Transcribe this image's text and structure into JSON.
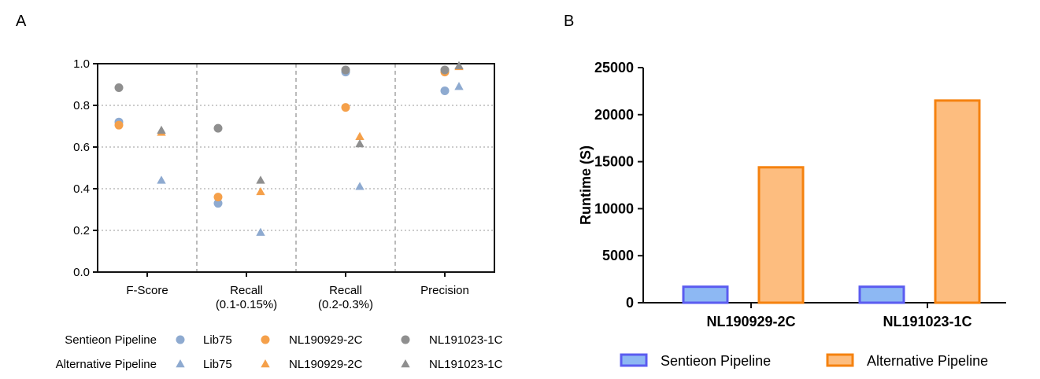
{
  "panel_a_label": "A",
  "panel_b_label": "B",
  "legend_a": {
    "rows": [
      {
        "label": "Sentieon Pipeline",
        "marker": "circle",
        "items": [
          "Lib75",
          "NL190929-2C",
          "NL191023-1C"
        ]
      },
      {
        "label": "Alternative Pipeline",
        "marker": "triangle",
        "items": [
          "Lib75",
          "NL190929-2C",
          "NL191023-1C"
        ]
      }
    ]
  },
  "legend_b": {
    "items": [
      "Sentieon Pipeline",
      "Alternative Pipeline"
    ]
  },
  "colors": {
    "lib75": "#8eaad0",
    "nl190929": "#f5a04a",
    "nl191023": "#8f8f8f",
    "sentieon_fill": "#8db8f3",
    "sentieon_edge": "#5b5cf0",
    "alternative_fill": "#fdbd7f",
    "alternative_edge": "#f5820f"
  },
  "chart_data": [
    {
      "id": "A",
      "type": "scatter",
      "title": "",
      "xlabel": "",
      "ylabel": "",
      "ylim": [
        0,
        1.0
      ],
      "yticks": [
        0.0,
        0.2,
        0.4,
        0.6,
        0.8,
        1.0
      ],
      "ytick_labels": [
        "0.0",
        "0.2",
        "0.4",
        "0.6",
        "0.8",
        "1.0"
      ],
      "categories": [
        [
          "F-Score"
        ],
        [
          "Recall",
          "(0.1-0.15%)"
        ],
        [
          "Recall",
          "(0.2-0.3%)"
        ],
        [
          "Precision"
        ]
      ],
      "grid": true,
      "series": [
        {
          "name": "Lib75",
          "pipeline": "Sentieon Pipeline",
          "marker": "circle",
          "color_key": "lib75",
          "values": [
            0.72,
            0.33,
            0.96,
            0.87
          ]
        },
        {
          "name": "NL190929-2C",
          "pipeline": "Sentieon Pipeline",
          "marker": "circle",
          "color_key": "nl190929",
          "values": [
            0.705,
            0.36,
            0.79,
            0.96
          ]
        },
        {
          "name": "NL191023-1C",
          "pipeline": "Sentieon Pipeline",
          "marker": "circle",
          "color_key": "nl191023",
          "values": [
            0.885,
            0.69,
            0.97,
            0.97
          ]
        },
        {
          "name": "Lib75",
          "pipeline": "Alternative Pipeline",
          "marker": "triangle",
          "color_key": "lib75",
          "values": [
            0.44,
            0.19,
            0.41,
            0.89
          ]
        },
        {
          "name": "NL190929-2C",
          "pipeline": "Alternative Pipeline",
          "marker": "triangle",
          "color_key": "nl190929",
          "values": [
            0.67,
            0.385,
            0.65,
            0.985
          ]
        },
        {
          "name": "NL191023-1C",
          "pipeline": "Alternative Pipeline",
          "marker": "triangle",
          "color_key": "nl191023",
          "values": [
            0.68,
            0.44,
            0.615,
            0.99
          ]
        }
      ]
    },
    {
      "id": "B",
      "type": "bar",
      "title": "",
      "xlabel": "",
      "ylabel": "Runtime (S)",
      "ylim": [
        0,
        25000
      ],
      "yticks": [
        0,
        5000,
        10000,
        15000,
        20000,
        25000
      ],
      "ytick_labels": [
        "0",
        "5000",
        "10000",
        "15000",
        "20000",
        "25000"
      ],
      "categories": [
        "NL190929-2C",
        "NL191023-1C"
      ],
      "series": [
        {
          "name": "Sentieon Pipeline",
          "fill_key": "sentieon_fill",
          "edge_key": "sentieon_edge",
          "values": [
            1700,
            1700
          ]
        },
        {
          "name": "Alternative Pipeline",
          "fill_key": "alternative_fill",
          "edge_key": "alternative_edge",
          "values": [
            14400,
            21500
          ]
        }
      ]
    }
  ]
}
